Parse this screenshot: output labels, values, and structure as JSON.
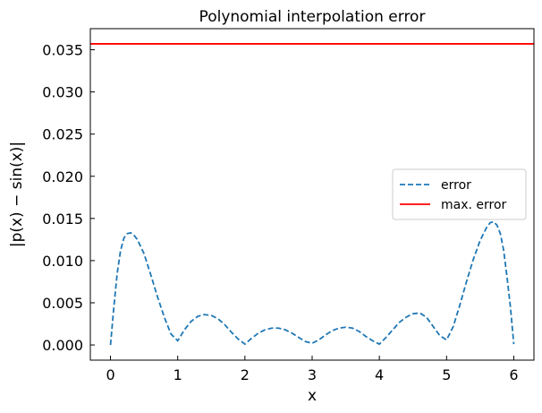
{
  "chart_data": {
    "type": "line",
    "title": "Polynomial interpolation error",
    "xlabel": "x",
    "ylabel": "|p(x) − sin(x)|",
    "xlim": [
      -0.3,
      6.3
    ],
    "ylim": [
      -0.0018,
      0.0375
    ],
    "x_ticks": [
      0,
      1,
      2,
      3,
      4,
      5,
      6
    ],
    "x_tick_labels": [
      "0",
      "1",
      "2",
      "3",
      "4",
      "5",
      "6"
    ],
    "y_ticks": [
      0.0,
      0.005,
      0.01,
      0.015,
      0.02,
      0.025,
      0.03,
      0.035
    ],
    "y_tick_labels": [
      "0.000",
      "0.005",
      "0.010",
      "0.015",
      "0.020",
      "0.025",
      "0.030",
      "0.035"
    ],
    "grid": false,
    "legend_position": "right",
    "series": [
      {
        "name": "error",
        "style": "dashed",
        "color": "#1f77b4",
        "x": [
          0,
          0.05,
          0.1,
          0.15,
          0.2,
          0.25,
          0.3,
          0.35,
          0.4,
          0.5,
          0.6,
          0.7,
          0.8,
          0.9,
          1.0,
          1.1,
          1.2,
          1.3,
          1.4,
          1.5,
          1.6,
          1.7,
          1.8,
          1.9,
          2.0,
          2.1,
          2.2,
          2.3,
          2.4,
          2.5,
          2.6,
          2.7,
          2.8,
          2.9,
          3.0,
          3.1,
          3.2,
          3.3,
          3.4,
          3.5,
          3.6,
          3.7,
          3.8,
          3.9,
          4.0,
          4.1,
          4.2,
          4.3,
          4.4,
          4.5,
          4.6,
          4.7,
          4.8,
          4.9,
          5.0,
          5.1,
          5.2,
          5.3,
          5.4,
          5.5,
          5.6,
          5.65,
          5.7,
          5.75,
          5.8,
          5.85,
          5.9,
          5.95,
          6.0
        ],
        "y": [
          0.0,
          0.0045,
          0.0085,
          0.0112,
          0.0127,
          0.0132,
          0.0133,
          0.013,
          0.0125,
          0.0108,
          0.0083,
          0.0057,
          0.0033,
          0.0013,
          0.0005,
          0.0018,
          0.0028,
          0.0034,
          0.0036,
          0.0035,
          0.0031,
          0.0024,
          0.0015,
          0.0007,
          0.0001,
          0.0008,
          0.0014,
          0.0018,
          0.002,
          0.002,
          0.0018,
          0.0014,
          0.0009,
          0.0004,
          0.0002,
          0.0006,
          0.0012,
          0.0017,
          0.002,
          0.0021,
          0.002,
          0.0016,
          0.001,
          0.0005,
          0.0001,
          0.0009,
          0.0018,
          0.0027,
          0.0033,
          0.0037,
          0.0038,
          0.0033,
          0.0022,
          0.0011,
          0.0006,
          0.0022,
          0.0048,
          0.0076,
          0.0102,
          0.0124,
          0.014,
          0.0145,
          0.0146,
          0.0142,
          0.0132,
          0.0112,
          0.008,
          0.0045,
          0.0001
        ]
      },
      {
        "name": "max. error",
        "style": "solid",
        "color": "#ff0000",
        "y": 0.0357
      }
    ]
  }
}
